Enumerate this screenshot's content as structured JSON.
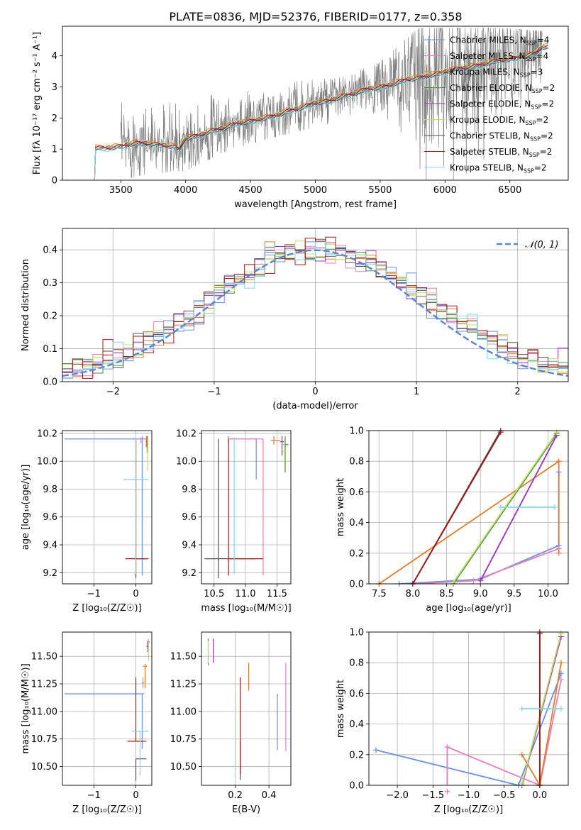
{
  "title": "PLATE=0836, MJD=52376, FIBERID=0177, z=0.358",
  "colors": {
    "chabrier_miles": "#6a8fde",
    "salpeter_miles": "#e87fbd",
    "kroupa_miles": "#e07b28",
    "chabrier_elodie": "#4b8f4b",
    "salpeter_elodie": "#9b30c0",
    "kroupa_elodie": "#c4e060",
    "chabrier_stelib": "#505050",
    "salpeter_stelib": "#a01818",
    "kroupa_stelib": "#82d8e0",
    "data": "#7f7f7f",
    "normal": "#5b87d6"
  },
  "chart_data": [
    {
      "id": "spectrum",
      "type": "line",
      "xlabel": "wavelength [Angstrom, rest frame]",
      "ylabel": "Flux [fλ 10⁻¹⁷ erg cm⁻² s⁻¹ A⁻¹]",
      "xlim": [
        3050,
        6950
      ],
      "ylim": [
        0,
        4.95
      ],
      "xticks": [
        3500,
        4000,
        4500,
        5000,
        5500,
        6000,
        6500
      ],
      "yticks": [
        0,
        1,
        2,
        3,
        4
      ],
      "grid": false,
      "legend_position": "right",
      "legend": [
        {
          "label": "Chabrier MILES, N_SSP=4",
          "color_key": "chabrier_miles"
        },
        {
          "label": "Salpeter MILES, N_SSP=4",
          "color_key": "salpeter_miles"
        },
        {
          "label": "Kroupa MILES, N_SSP=3",
          "color_key": "kroupa_miles"
        },
        {
          "label": "Chabrier ELODIE, N_SSP=2",
          "color_key": "chabrier_elodie"
        },
        {
          "label": "Salpeter ELODIE, N_SSP=2",
          "color_key": "salpeter_elodie"
        },
        {
          "label": "Kroupa ELODIE, N_SSP=2",
          "color_key": "kroupa_elodie"
        },
        {
          "label": "Chabrier STELIB, N_SSP=2",
          "color_key": "chabrier_stelib"
        },
        {
          "label": "Salpeter STELIB, N_SSP=2",
          "color_key": "salpeter_stelib"
        },
        {
          "label": "Kroupa STELIB, N_SSP=2",
          "color_key": "kroupa_stelib"
        }
      ],
      "model_x": [
        3290,
        3300,
        3400,
        3500,
        3600,
        3700,
        3800,
        3900,
        3950,
        4000,
        4100,
        4200,
        4300,
        4400,
        4500,
        4600,
        4700,
        4800,
        4900,
        5000,
        5100,
        5200,
        5300,
        5400,
        5500,
        5600,
        5700,
        5800,
        5900,
        6000,
        6100,
        6200,
        6300,
        6400,
        6500,
        6600,
        6700,
        6750
      ],
      "model_y": [
        0,
        1.05,
        1.05,
        1.1,
        1.2,
        1.2,
        1.15,
        1.1,
        1.0,
        1.35,
        1.45,
        1.6,
        1.7,
        1.85,
        1.9,
        2.0,
        2.1,
        2.25,
        2.35,
        2.5,
        2.55,
        2.7,
        2.8,
        2.95,
        3.0,
        3.1,
        3.25,
        3.3,
        3.4,
        3.5,
        3.6,
        3.65,
        3.75,
        3.85,
        3.9,
        4.0,
        4.1,
        4.3
      ],
      "data_x_range": [
        3500,
        6750
      ],
      "data_envelope": {
        "x": [
          3500,
          3700,
          4000,
          4300,
          4600,
          4900,
          5200,
          5500,
          5800,
          6100,
          6400,
          6750
        ],
        "lo": [
          0.0,
          0.2,
          0.3,
          0.9,
          1.3,
          1.6,
          1.9,
          2.2,
          0.0,
          0.0,
          1.0,
          2.5
        ],
        "hi": [
          2.5,
          2.3,
          2.6,
          2.8,
          3.0,
          3.2,
          3.3,
          3.8,
          4.9,
          4.9,
          4.9,
          4.8
        ]
      }
    },
    {
      "id": "residuals",
      "type": "histogram",
      "xlabel": "(data-model)/error",
      "ylabel": "Normed distribution",
      "xlim": [
        -2.5,
        2.5
      ],
      "ylim": [
        0,
        0.465
      ],
      "xticks": [
        -2,
        -1,
        0,
        1,
        2
      ],
      "yticks": [
        0.0,
        0.1,
        0.2,
        0.3,
        0.4
      ],
      "grid": true,
      "legend_position": "top-right",
      "legend": [
        {
          "label": "𝒩(0, 1)",
          "color_key": "normal"
        }
      ],
      "bin_width": 0.1
    },
    {
      "id": "age_vs_Z",
      "type": "scatter",
      "xlabel": "Z [log₁₀(Z/Z☉)]",
      "ylabel": "age  [log₁₀(age/yr)]",
      "xlim": [
        -1.75,
        0.38
      ],
      "ylim": [
        9.12,
        10.22
      ],
      "xticks": [
        -1,
        0
      ],
      "yticks": [
        9.2,
        9.4,
        9.6,
        9.8,
        10.0,
        10.2
      ],
      "grid": true,
      "points": [
        {
          "k": "chabrier_miles",
          "x": 0.15,
          "xerr": [
            1.85,
            0.05
          ],
          "y": 10.16,
          "yerr": [
            0.98,
            0.02
          ]
        },
        {
          "k": "salpeter_miles",
          "x": 0.12,
          "xerr": [
            0.0,
            0.0
          ],
          "y": 10.15,
          "yerr": [
            0.02,
            0.02
          ]
        },
        {
          "k": "kroupa_miles",
          "x": 0.25,
          "xerr": [
            0.05,
            0.05
          ],
          "y": 10.16,
          "yerr": [
            0.06,
            0.02
          ]
        },
        {
          "k": "chabrier_elodie",
          "x": 0.27,
          "xerr": [
            0.03,
            0.03
          ],
          "y": 10.12,
          "yerr": [
            0.06,
            0.06
          ]
        },
        {
          "k": "salpeter_elodie",
          "x": 0.27,
          "xerr": [
            0.03,
            0.03
          ],
          "y": 10.14,
          "yerr": [
            0.06,
            0.04
          ]
        },
        {
          "k": "kroupa_elodie",
          "x": 0.28,
          "xerr": [
            0.03,
            0.03
          ],
          "y": 10.07,
          "yerr": [
            0.14,
            0.1
          ]
        },
        {
          "k": "chabrier_stelib",
          "x": 0.0,
          "xerr": [
            0.0,
            0.25
          ],
          "y": 9.3,
          "yerr": [
            0.14,
            0.86
          ]
        },
        {
          "k": "salpeter_stelib",
          "x": 0.0,
          "xerr": [
            0.25,
            0.3
          ],
          "y": 9.3,
          "yerr": [
            0.12,
            0.86
          ]
        },
        {
          "k": "kroupa_stelib",
          "x": 0.0,
          "xerr": [
            0.3,
            0.3
          ],
          "y": 9.87,
          "yerr": [
            0.68,
            0.3
          ]
        }
      ]
    },
    {
      "id": "age_vs_mass",
      "type": "scatter",
      "xlabel": "mass [log₁₀(M/M☉)]",
      "ylabel": "",
      "xlim": [
        10.3,
        11.72
      ],
      "ylim": [
        9.12,
        10.22
      ],
      "xticks": [
        10.5,
        11.0,
        11.5
      ],
      "yticks": [
        9.2,
        9.4,
        9.6,
        9.8,
        10.0,
        10.2
      ],
      "grid": true,
      "points": [
        {
          "k": "chabrier_miles",
          "x": 10.73,
          "xerr": [
            0.0,
            0.44
          ],
          "y": 10.16,
          "yerr": [
            0.02,
            0.02
          ],
          "vline": [
            9.87,
            10.16
          ]
        },
        {
          "k": "salpeter_miles",
          "x": 11.28,
          "xerr": [
            0.55,
            0.0
          ],
          "y": 10.16,
          "yerr": [
            0.98,
            0.0
          ]
        },
        {
          "k": "kroupa_miles",
          "x": 11.45,
          "xerr": [
            0.05,
            0.1
          ],
          "y": 10.15,
          "yerr": [
            0.03,
            0.03
          ]
        },
        {
          "k": "chabrier_elodie",
          "x": 11.63,
          "xerr": [
            0.03,
            0.05
          ],
          "y": 10.12,
          "yerr": [
            0.2,
            0.06
          ]
        },
        {
          "k": "salpeter_elodie",
          "x": 11.58,
          "xerr": [
            0.03,
            0.03
          ],
          "y": 10.14,
          "yerr": [
            0.1,
            0.04
          ]
        },
        {
          "k": "kroupa_elodie",
          "x": 11.62,
          "xerr": [
            0.03,
            0.03
          ],
          "y": 10.07,
          "yerr": [
            0.14,
            0.1
          ]
        },
        {
          "k": "chabrier_stelib",
          "x": 10.57,
          "xerr": [
            0.22,
            0.6
          ],
          "y": 9.3,
          "yerr": [
            0.14,
            0.86
          ]
        },
        {
          "k": "salpeter_stelib",
          "x": 10.73,
          "xerr": [
            0.0,
            0.55
          ],
          "y": 9.3,
          "yerr": [
            0.12,
            0.86
          ]
        },
        {
          "k": "kroupa_stelib",
          "x": 10.82,
          "xerr": [
            0.0,
            0.0
          ],
          "y": 9.87,
          "yerr": [
            0.68,
            0.3
          ]
        }
      ]
    },
    {
      "id": "weight_vs_age",
      "type": "line",
      "xlabel": "age  [log₁₀(age/yr)]",
      "ylabel": "mass weight",
      "xlim": [
        7.35,
        10.3
      ],
      "ylim": [
        0,
        1.0
      ],
      "xticks": [
        7.5,
        8.0,
        8.5,
        9.0,
        9.5,
        10.0
      ],
      "yticks": [
        0.0,
        0.2,
        0.4,
        0.6,
        0.8,
        1.0
      ],
      "grid": true,
      "series": [
        {
          "k": "chabrier_miles",
          "x": [
            7.8,
            9.0,
            10.16,
            10.16
          ],
          "y": [
            0.0,
            0.03,
            0.25,
            0.73
          ]
        },
        {
          "k": "salpeter_miles",
          "x": [
            8.0,
            8.9,
            10.16
          ],
          "y": [
            0.0,
            0.02,
            0.23
          ]
        },
        {
          "k": "kroupa_miles",
          "x": [
            7.5,
            10.16,
            10.16
          ],
          "y": [
            0.0,
            0.8,
            0.2
          ]
        },
        {
          "k": "chabrier_elodie",
          "x": [
            8.6,
            10.13
          ],
          "y": [
            0.0,
            0.98
          ]
        },
        {
          "k": "salpeter_elodie",
          "x": [
            9.0,
            10.13
          ],
          "y": [
            0.02,
            0.97
          ]
        },
        {
          "k": "kroupa_elodie",
          "x": [
            8.6,
            10.13
          ],
          "y": [
            0.01,
            0.99
          ]
        },
        {
          "k": "chabrier_stelib",
          "x": [
            8.0,
            9.3
          ],
          "y": [
            0.0,
            1.0
          ]
        },
        {
          "k": "salpeter_stelib",
          "x": [
            8.0,
            9.3
          ],
          "y": [
            0.0,
            0.99
          ]
        },
        {
          "k": "kroupa_stelib",
          "x": [
            9.3,
            10.1
          ],
          "y": [
            0.5,
            0.5
          ]
        }
      ]
    },
    {
      "id": "mass_vs_Z",
      "type": "scatter",
      "xlabel": "Z [log₁₀(Z/Z☉)]",
      "ylabel": "mass [log₁₀(M/M☉)]",
      "xlim": [
        -1.75,
        0.38
      ],
      "ylim": [
        10.33,
        11.72
      ],
      "xticks": [
        -1,
        0
      ],
      "yticks": [
        10.5,
        10.75,
        11.0,
        11.25,
        11.5
      ],
      "grid": true,
      "points": [
        {
          "k": "chabrier_miles",
          "x": 0.15,
          "xerr": [
            1.85,
            0.05
          ],
          "y": 11.16,
          "yerr": [
            0.5,
            0.0
          ]
        },
        {
          "k": "salpeter_miles",
          "x": 0.17,
          "xerr": [
            0.03,
            0.03
          ],
          "y": 11.26,
          "yerr": [
            0.05,
            0.05
          ]
        },
        {
          "k": "kroupa_miles",
          "x": 0.22,
          "xerr": [
            0.05,
            0.05
          ],
          "y": 11.41,
          "yerr": [
            0.2,
            0.02
          ]
        },
        {
          "k": "chabrier_elodie",
          "x": 0.3,
          "xerr": [
            0.03,
            0.03
          ],
          "y": 11.63,
          "yerr": [
            0.03,
            0.03
          ]
        },
        {
          "k": "salpeter_elodie",
          "x": 0.28,
          "xerr": [
            0.03,
            0.03
          ],
          "y": 11.59,
          "yerr": [
            0.05,
            0.05
          ]
        },
        {
          "k": "kroupa_elodie",
          "x": 0.3,
          "xerr": [
            0.03,
            0.03
          ],
          "y": 11.56,
          "yerr": [
            0.1,
            0.1
          ]
        },
        {
          "k": "chabrier_stelib",
          "x": 0.0,
          "xerr": [
            0.0,
            0.25
          ],
          "y": 10.57,
          "yerr": [
            0.2,
            0.0
          ]
        },
        {
          "k": "salpeter_stelib",
          "x": 0.0,
          "xerr": [
            0.2,
            0.25
          ],
          "y": 10.73,
          "yerr": [
            0.0,
            0.58
          ]
        },
        {
          "k": "kroupa_stelib",
          "x": 0.1,
          "xerr": [
            0.2,
            0.2
          ],
          "y": 10.82,
          "yerr": [
            0.4,
            0.0
          ]
        }
      ]
    },
    {
      "id": "mass_vs_EBV",
      "type": "scatter",
      "xlabel": "E(B-V)",
      "ylabel": "",
      "xlim": [
        0.0,
        0.53
      ],
      "ylim": [
        10.33,
        11.72
      ],
      "xticks": [
        0.2,
        0.4
      ],
      "yticks": [
        10.5,
        10.75,
        11.0,
        11.25,
        11.5
      ],
      "grid": true,
      "vlines": [
        {
          "k": "chabrier_miles",
          "x": 0.45,
          "y": [
            10.65,
            11.16
          ]
        },
        {
          "k": "salpeter_miles",
          "x": 0.5,
          "y": [
            10.64,
            11.44
          ]
        },
        {
          "k": "kroupa_miles",
          "x": 0.28,
          "y": [
            11.19,
            11.44
          ]
        },
        {
          "k": "chabrier_elodie",
          "x": 0.04,
          "y": [
            11.42,
            11.66
          ]
        },
        {
          "k": "salpeter_elodie",
          "x": 0.07,
          "y": [
            11.44,
            11.66
          ]
        },
        {
          "k": "kroupa_elodie",
          "x": 0.04,
          "y": [
            11.44,
            11.64
          ]
        },
        {
          "k": "chabrier_stelib",
          "x": 0.23,
          "y": [
            10.38,
            10.73
          ]
        },
        {
          "k": "salpeter_stelib",
          "x": 0.23,
          "y": [
            10.43,
            11.31
          ]
        },
        {
          "k": "kroupa_stelib",
          "x": 0.2,
          "y": [
            10.42,
            11.16
          ]
        }
      ]
    },
    {
      "id": "weight_vs_Z",
      "type": "line",
      "xlabel": "Z [log₁₀(Z/Z☉)]",
      "ylabel": "mass weight",
      "xlim": [
        -2.4,
        0.4
      ],
      "ylim": [
        0,
        1.0
      ],
      "xticks": [
        -2.0,
        -1.5,
        -1.0,
        -0.5,
        0.0
      ],
      "yticks": [
        0.0,
        0.2,
        0.4,
        0.6,
        0.8,
        1.0
      ],
      "grid": true,
      "series": [
        {
          "k": "chabrier_miles",
          "x": [
            -2.3,
            -0.3,
            0.3
          ],
          "y": [
            0.23,
            0.0,
            0.73
          ]
        },
        {
          "k": "salpeter_miles",
          "x": [
            -1.3,
            -1.3,
            0.0,
            0.3
          ],
          "y": [
            -0.04,
            0.25,
            0.0,
            0.69
          ]
        },
        {
          "k": "kroupa_miles",
          "x": [
            -0.25,
            0.0,
            0.3
          ],
          "y": [
            0.2,
            0.0,
            0.8
          ]
        },
        {
          "k": "chabrier_elodie",
          "x": [
            -0.25,
            0.3
          ],
          "y": [
            0.0,
            0.99
          ]
        },
        {
          "k": "salpeter_elodie",
          "x": [
            -0.25,
            0.3
          ],
          "y": [
            0.0,
            0.97
          ]
        },
        {
          "k": "kroupa_elodie",
          "x": [
            -0.25,
            0.3
          ],
          "y": [
            0.01,
            0.99
          ]
        },
        {
          "k": "chabrier_stelib",
          "x": [
            0.0,
            0.0
          ],
          "y": [
            0.0,
            1.0
          ]
        },
        {
          "k": "salpeter_stelib",
          "x": [
            0.0,
            0.0
          ],
          "y": [
            0.0,
            0.99
          ]
        },
        {
          "k": "kroupa_stelib",
          "x": [
            -0.25,
            0.3
          ],
          "y": [
            0.5,
            0.5
          ]
        }
      ]
    }
  ]
}
